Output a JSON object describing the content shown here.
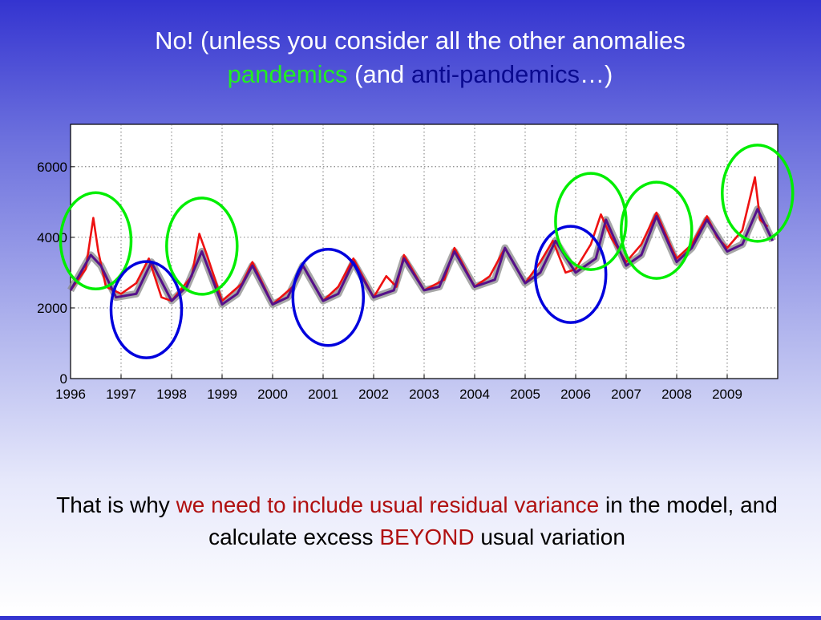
{
  "title": {
    "line1": "No! (unless you consider all the other anomalies",
    "pandemics": "pandemics",
    "and": " (and ",
    "anti_pandemics": "anti-pandemics",
    "close": "…)"
  },
  "caption": {
    "part1": "That is why ",
    "highlight": "we need to include usual residual variance",
    "part2": " in the model, and calculate excess ",
    "beyond": "BEYOND",
    "part3": " usual variation"
  },
  "colors": {
    "title": "#ffffff",
    "pandemic_circle": "#00ee00",
    "anti_pandemic_circle": "#0000dd",
    "observed_red": "#ee1111",
    "range_gray": "#8a8a8a",
    "model_purple": "#55108a",
    "highlight_red": "#b01010"
  },
  "chart_data": {
    "type": "line",
    "xlim": [
      1996,
      2010
    ],
    "ylim": [
      0,
      7200
    ],
    "x_ticks": [
      "1996",
      "1997",
      "1998",
      "1999",
      "2000",
      "2001",
      "2002",
      "2003",
      "2004",
      "2005",
      "2006",
      "2007",
      "2008",
      "2009"
    ],
    "y_ticks": [
      "0",
      "2000",
      "4000",
      "6000"
    ],
    "grid": true,
    "series": [
      {
        "role": "model-baseline",
        "x": [
          1996.0,
          1996.4,
          1996.6,
          1996.9,
          1997.3,
          1997.6,
          1998.0,
          1998.3,
          1998.6,
          1999.0,
          1999.3,
          1999.6,
          2000.0,
          2000.3,
          2000.6,
          2001.0,
          2001.3,
          2001.6,
          2002.0,
          2002.4,
          2002.6,
          2003.0,
          2003.3,
          2003.6,
          2004.0,
          2004.4,
          2004.6,
          2005.0,
          2005.3,
          2005.6,
          2006.0,
          2006.4,
          2006.6,
          2007.0,
          2007.3,
          2007.6,
          2008.0,
          2008.3,
          2008.6,
          2009.0,
          2009.3,
          2009.6,
          2009.9
        ],
        "y": [
          2500,
          3500,
          3200,
          2300,
          2400,
          3300,
          2200,
          2600,
          3600,
          2100,
          2400,
          3200,
          2100,
          2300,
          3200,
          2200,
          2400,
          3300,
          2300,
          2500,
          3400,
          2500,
          2600,
          3600,
          2600,
          2800,
          3700,
          2700,
          3000,
          3900,
          3000,
          3400,
          4500,
          3200,
          3500,
          4600,
          3300,
          3700,
          4500,
          3600,
          3800,
          4800,
          3900
        ]
      },
      {
        "role": "observed-red",
        "x": [
          1996.0,
          1996.3,
          1996.45,
          1996.55,
          1996.7,
          1997.0,
          1997.3,
          1997.55,
          1997.8,
          1998.0,
          1998.4,
          1998.55,
          1998.7,
          1999.0,
          1999.4,
          1999.6,
          2000.0,
          2000.4,
          2000.6,
          2001.0,
          2001.3,
          2001.6,
          2002.0,
          2002.25,
          2002.45,
          2002.6,
          2003.0,
          2003.4,
          2003.6,
          2004.0,
          2004.3,
          2004.6,
          2005.0,
          2005.3,
          2005.55,
          2005.8,
          2006.0,
          2006.3,
          2006.5,
          2006.7,
          2007.0,
          2007.3,
          2007.6,
          2007.9,
          2008.0,
          2008.3,
          2008.6,
          2008.8,
          2009.0,
          2009.3,
          2009.55,
          2009.65,
          2009.8
        ],
        "y": [
          2500,
          3100,
          4550,
          3600,
          2600,
          2400,
          2700,
          3400,
          2300,
          2200,
          2900,
          4100,
          3500,
          2200,
          2700,
          3300,
          2100,
          2600,
          3200,
          2200,
          2600,
          3400,
          2300,
          2900,
          2600,
          3500,
          2500,
          2800,
          3700,
          2600,
          2900,
          3700,
          2700,
          3300,
          3900,
          3000,
          3100,
          3800,
          4650,
          4000,
          3300,
          3800,
          4700,
          3700,
          3400,
          3800,
          4600,
          4000,
          3700,
          4200,
          5700,
          4500,
          4300
        ]
      }
    ],
    "annotations": [
      {
        "role": "pandemic-circle",
        "center_year": 1996.5,
        "center_value": 3900
      },
      {
        "role": "anti-pandemic-circle",
        "center_year": 1997.5,
        "center_value": 1950
      },
      {
        "role": "pandemic-circle",
        "center_year": 1998.6,
        "center_value": 3750
      },
      {
        "role": "anti-pandemic-circle",
        "center_year": 2001.1,
        "center_value": 2300
      },
      {
        "role": "anti-pandemic-circle",
        "center_year": 2005.9,
        "center_value": 2950
      },
      {
        "role": "pandemic-circle",
        "center_year": 2006.3,
        "center_value": 4450
      },
      {
        "role": "pandemic-circle",
        "center_year": 2007.6,
        "center_value": 4200
      },
      {
        "role": "pandemic-circle",
        "center_year": 2009.6,
        "center_value": 5250
      }
    ]
  }
}
